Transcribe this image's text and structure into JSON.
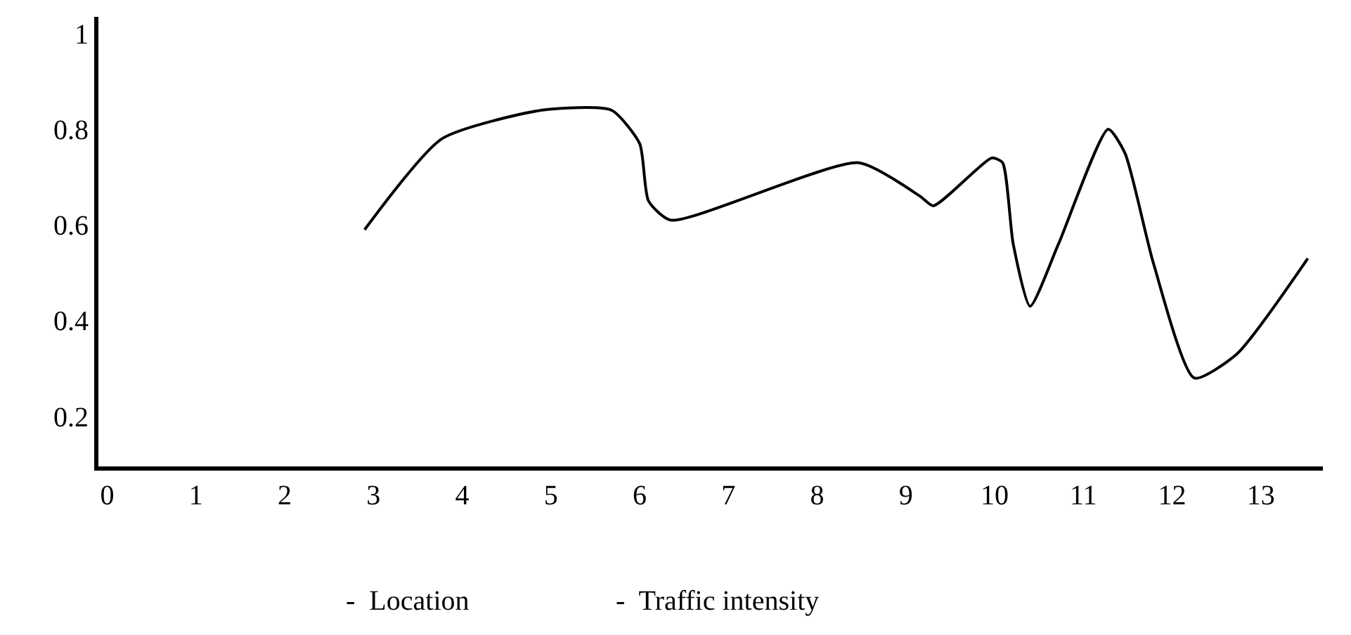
{
  "chart_data": {
    "type": "line",
    "x": [
      2.9,
      3.77,
      4.9,
      5.68,
      6.0,
      6.1,
      6.35,
      8.47,
      9.16,
      9.31,
      9.97,
      10.09,
      10.21,
      10.4,
      10.72,
      11.28,
      11.47,
      11.79,
      12.25,
      12.73,
      13.53
    ],
    "series": [
      {
        "color": "#000000",
        "values": [
          0.59,
          0.78,
          0.84,
          0.84,
          0.77,
          0.65,
          0.61,
          0.73,
          0.66,
          0.64,
          0.74,
          0.73,
          0.56,
          0.43,
          0.56,
          0.8,
          0.75,
          0.52,
          0.28,
          0.33,
          0.53
        ]
      }
    ],
    "xlim": [
      -0.1,
      13.7
    ],
    "xticks": [
      0,
      1,
      2,
      3,
      4,
      5,
      6,
      7,
      8,
      9,
      10,
      11,
      12,
      13
    ],
    "ylim": [
      0.095,
      1.035
    ],
    "yticks": [
      0.2,
      0.4,
      0.6,
      0.8,
      1
    ],
    "annotations": [
      "-  Location",
      "-  Traffic intensity"
    ],
    "marker": "none",
    "line_style": "solid"
  }
}
